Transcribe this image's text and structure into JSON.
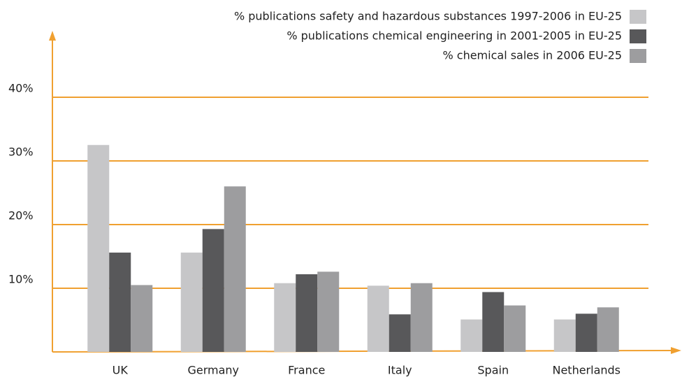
{
  "chart_data": {
    "type": "bar",
    "categories": [
      "UK",
      "Germany",
      "France",
      "Italy",
      "Spain",
      "Netherlands"
    ],
    "series": [
      {
        "name": "% publications safety and hazardous substances 1997-2006 in EU-25",
        "color": "#c6c6c8",
        "values": [
          32.5,
          15.6,
          10.8,
          10.4,
          5.1,
          5.1
        ]
      },
      {
        "name": "% publications chemical engineering in 2001-2005 in EU-25",
        "color": "#58585a",
        "values": [
          15.6,
          19.3,
          12.2,
          5.9,
          9.4,
          6.0
        ]
      },
      {
        "name": "% chemical sales in 2006 EU-25",
        "color": "#9d9d9f",
        "values": [
          10.5,
          26.0,
          12.6,
          10.8,
          7.3,
          7.0
        ]
      }
    ],
    "ylim": [
      0,
      50
    ],
    "yticks": [
      {
        "value": 10,
        "label": "10%"
      },
      {
        "value": 20,
        "label": "20%"
      },
      {
        "value": 30,
        "label": "30%"
      },
      {
        "value": 40,
        "label": "40%"
      }
    ],
    "grid": true,
    "grid_color": "#f0a030",
    "legend": "top-right"
  }
}
